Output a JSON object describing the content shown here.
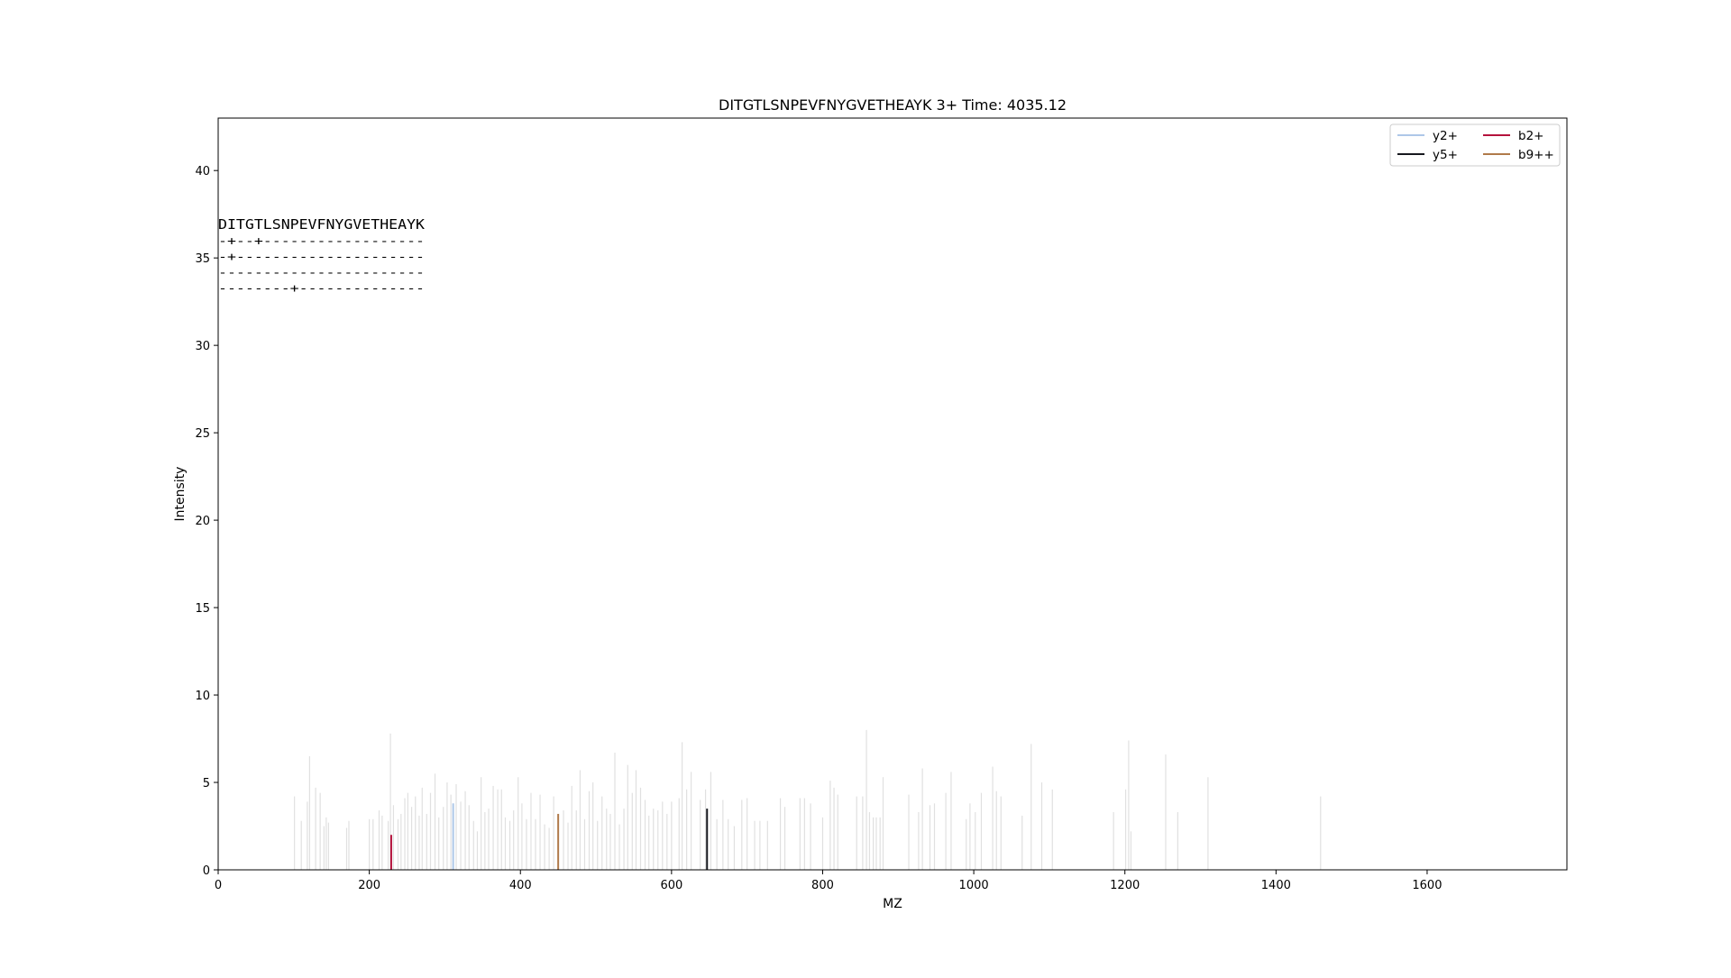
{
  "chart_data": {
    "type": "bar",
    "title": "DITGTLSNPEVFNYGVETHEAYK  3+ Time: 4035.12",
    "xlabel": "MZ",
    "ylabel": "Intensity",
    "xlim": [
      0,
      1785
    ],
    "ylim": [
      0,
      43
    ],
    "x_ticks": [
      0,
      200,
      400,
      600,
      800,
      1000,
      1200,
      1400,
      1600
    ],
    "y_ticks": [
      0,
      5,
      10,
      15,
      20,
      25,
      30,
      35,
      40
    ],
    "grid": false,
    "legend_position": "top-right",
    "legend": [
      {
        "name": "y2+",
        "color": "#aec7e8"
      },
      {
        "name": "y5+",
        "color": "#17191f"
      },
      {
        "name": "b2+",
        "color": "#b5123c"
      },
      {
        "name": "b9++",
        "color": "#b07a4a"
      }
    ],
    "annotation_lines": [
      "DITGTLSNPEVFNYGVETHEAYK",
      "-+--+------------------",
      "-+---------------------",
      "-----------------------",
      "--------+--------------"
    ],
    "background_color": "#e0e0e0",
    "background_peaks": [
      [
        101,
        4.2
      ],
      [
        110,
        2.8
      ],
      [
        118,
        3.9
      ],
      [
        121,
        6.5
      ],
      [
        129,
        4.7
      ],
      [
        135,
        4.4
      ],
      [
        140,
        2.5
      ],
      [
        143,
        3.0
      ],
      [
        146,
        2.7
      ],
      [
        170,
        2.4
      ],
      [
        173,
        2.8
      ],
      [
        200,
        2.9
      ],
      [
        205,
        2.9
      ],
      [
        213,
        3.4
      ],
      [
        217,
        3.1
      ],
      [
        225,
        2.8
      ],
      [
        228,
        7.8
      ],
      [
        232,
        3.7
      ],
      [
        238,
        2.9
      ],
      [
        242,
        3.2
      ],
      [
        247,
        4.1
      ],
      [
        251,
        4.4
      ],
      [
        256,
        3.6
      ],
      [
        261,
        4.2
      ],
      [
        266,
        3.1
      ],
      [
        270,
        4.7
      ],
      [
        276,
        3.2
      ],
      [
        281,
        4.4
      ],
      [
        287,
        5.5
      ],
      [
        292,
        3.0
      ],
      [
        298,
        3.6
      ],
      [
        303,
        5.0
      ],
      [
        308,
        4.3
      ],
      [
        315,
        4.9
      ],
      [
        321,
        3.9
      ],
      [
        327,
        4.5
      ],
      [
        332,
        3.7
      ],
      [
        338,
        2.8
      ],
      [
        343,
        2.2
      ],
      [
        348,
        5.3
      ],
      [
        353,
        3.3
      ],
      [
        358,
        3.5
      ],
      [
        364,
        4.8
      ],
      [
        370,
        4.6
      ],
      [
        375,
        4.6
      ],
      [
        380,
        3.0
      ],
      [
        386,
        2.8
      ],
      [
        391,
        3.4
      ],
      [
        397,
        5.3
      ],
      [
        402,
        3.8
      ],
      [
        408,
        2.9
      ],
      [
        414,
        4.4
      ],
      [
        420,
        2.9
      ],
      [
        426,
        4.3
      ],
      [
        432,
        2.6
      ],
      [
        438,
        2.4
      ],
      [
        444,
        4.2
      ],
      [
        457,
        3.4
      ],
      [
        463,
        2.7
      ],
      [
        468,
        4.8
      ],
      [
        474,
        3.4
      ],
      [
        479,
        5.7
      ],
      [
        485,
        2.9
      ],
      [
        491,
        4.5
      ],
      [
        496,
        5.0
      ],
      [
        502,
        2.8
      ],
      [
        508,
        4.2
      ],
      [
        514,
        3.5
      ],
      [
        519,
        3.2
      ],
      [
        525,
        6.7
      ],
      [
        531,
        2.6
      ],
      [
        537,
        3.5
      ],
      [
        542,
        6.0
      ],
      [
        548,
        4.4
      ],
      [
        553,
        5.7
      ],
      [
        559,
        4.7
      ],
      [
        565,
        4.0
      ],
      [
        570,
        3.1
      ],
      [
        576,
        3.5
      ],
      [
        582,
        3.4
      ],
      [
        588,
        3.9
      ],
      [
        594,
        3.2
      ],
      [
        600,
        3.9
      ],
      [
        610,
        4.1
      ],
      [
        614,
        7.3
      ],
      [
        620,
        4.6
      ],
      [
        626,
        5.6
      ],
      [
        638,
        4.0
      ],
      [
        645,
        4.6
      ],
      [
        652,
        5.6
      ],
      [
        660,
        2.9
      ],
      [
        668,
        4.0
      ],
      [
        675,
        2.9
      ],
      [
        683,
        2.5
      ],
      [
        693,
        4.0
      ],
      [
        700,
        4.1
      ],
      [
        710,
        2.8
      ],
      [
        717,
        2.8
      ],
      [
        727,
        2.8
      ],
      [
        744,
        4.1
      ],
      [
        750,
        3.6
      ],
      [
        770,
        4.1
      ],
      [
        776,
        4.1
      ],
      [
        784,
        3.8
      ],
      [
        800,
        3.0
      ],
      [
        810,
        5.1
      ],
      [
        815,
        4.7
      ],
      [
        820,
        4.3
      ],
      [
        845,
        4.2
      ],
      [
        853,
        4.2
      ],
      [
        858,
        8.0
      ],
      [
        862,
        3.3
      ],
      [
        867,
        3.0
      ],
      [
        871,
        3.0
      ],
      [
        876,
        3.0
      ],
      [
        880,
        5.3
      ],
      [
        914,
        4.3
      ],
      [
        927,
        3.3
      ],
      [
        932,
        5.8
      ],
      [
        942,
        3.7
      ],
      [
        948,
        3.8
      ],
      [
        963,
        4.4
      ],
      [
        970,
        5.6
      ],
      [
        990,
        2.9
      ],
      [
        995,
        3.8
      ],
      [
        1002,
        3.3
      ],
      [
        1010,
        4.4
      ],
      [
        1025,
        5.9
      ],
      [
        1030,
        4.5
      ],
      [
        1036,
        4.2
      ],
      [
        1064,
        3.1
      ],
      [
        1076,
        7.2
      ],
      [
        1090,
        5.0
      ],
      [
        1104,
        4.6
      ],
      [
        1185,
        3.3
      ],
      [
        1201,
        4.6
      ],
      [
        1205,
        7.4
      ],
      [
        1208,
        2.2
      ],
      [
        1254,
        6.6
      ],
      [
        1270,
        3.3
      ],
      [
        1310,
        5.3
      ],
      [
        1459,
        4.2
      ]
    ],
    "series": [
      {
        "name": "y2+",
        "color": "#aec7e8",
        "x": [
          311
        ],
        "values": [
          3.8
        ]
      },
      {
        "name": "y5+",
        "color": "#17191f",
        "x": [
          647
        ],
        "values": [
          3.5
        ]
      },
      {
        "name": "b2+",
        "color": "#b5123c",
        "x": [
          229
        ],
        "values": [
          2.0
        ]
      },
      {
        "name": "b9++",
        "color": "#b07a4a",
        "x": [
          450
        ],
        "values": [
          3.2
        ]
      }
    ]
  }
}
